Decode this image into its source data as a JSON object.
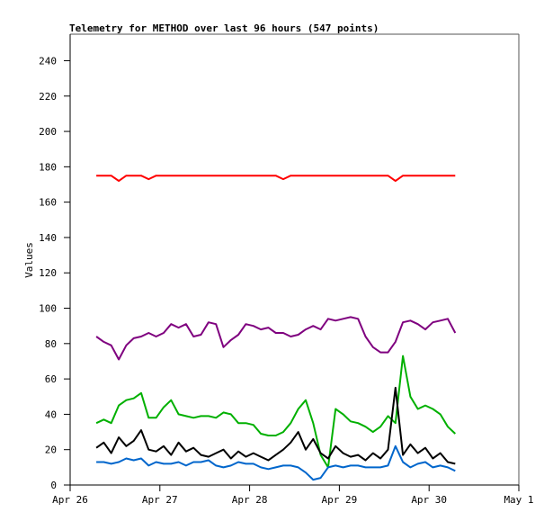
{
  "chart_data": {
    "type": "line",
    "title": "Telemetry for METHOD over last 96 hours (547 points)",
    "xlabel": "",
    "ylabel": "Values",
    "ylim": [
      0,
      255
    ],
    "yticks": [
      0,
      20,
      40,
      60,
      80,
      100,
      120,
      140,
      160,
      180,
      200,
      220,
      240
    ],
    "xlim_hours": [
      0,
      120
    ],
    "xticks": [
      {
        "hour": 0,
        "label": "Apr 26"
      },
      {
        "hour": 24,
        "label": "Apr 27"
      },
      {
        "hour": 48,
        "label": "Apr 28"
      },
      {
        "hour": 72,
        "label": "Apr 29"
      },
      {
        "hour": 96,
        "label": "Apr 30"
      },
      {
        "hour": 120,
        "label": "May 1"
      }
    ],
    "x_start_hour": 7,
    "x_step_hours": 2,
    "grid": false,
    "series": [
      {
        "name": "red",
        "color": "#ff0000",
        "values": [
          175,
          175,
          175,
          172,
          175,
          175,
          175,
          173,
          175,
          175,
          175,
          175,
          175,
          175,
          175,
          175,
          175,
          175,
          175,
          175,
          175,
          175,
          175,
          175,
          175,
          173,
          175,
          175,
          175,
          175,
          175,
          175,
          175,
          175,
          175,
          175,
          175,
          175,
          175,
          175,
          172,
          175,
          175,
          175,
          175,
          175,
          175,
          175,
          175
        ]
      },
      {
        "name": "purple",
        "color": "#7f007f",
        "values": [
          84,
          81,
          79,
          71,
          79,
          83,
          84,
          86,
          84,
          86,
          91,
          89,
          91,
          84,
          85,
          92,
          91,
          78,
          82,
          85,
          91,
          90,
          88,
          89,
          86,
          86,
          84,
          85,
          88,
          90,
          88,
          94,
          93,
          94,
          95,
          94,
          84,
          78,
          75,
          75,
          81,
          92,
          93,
          91,
          88,
          92,
          93,
          94,
          86
        ]
      },
      {
        "name": "green",
        "color": "#00b000",
        "values": [
          35,
          37,
          35,
          45,
          48,
          49,
          52,
          38,
          38,
          44,
          48,
          40,
          39,
          38,
          39,
          39,
          38,
          41,
          40,
          35,
          35,
          34,
          29,
          28,
          28,
          30,
          35,
          43,
          48,
          35,
          17,
          10,
          43,
          40,
          36,
          35,
          33,
          30,
          33,
          39,
          35,
          73,
          50,
          43,
          45,
          43,
          40,
          33,
          29
        ]
      },
      {
        "name": "black",
        "color": "#000000",
        "values": [
          21,
          24,
          18,
          27,
          22,
          25,
          31,
          20,
          19,
          22,
          17,
          24,
          19,
          21,
          17,
          16,
          18,
          20,
          15,
          19,
          16,
          18,
          16,
          14,
          17,
          20,
          24,
          30,
          20,
          26,
          18,
          15,
          22,
          18,
          16,
          17,
          14,
          18,
          15,
          20,
          55,
          17,
          23,
          18,
          21,
          15,
          18,
          13,
          12
        ]
      },
      {
        "name": "blue",
        "color": "#0066cc",
        "values": [
          13,
          13,
          12,
          13,
          15,
          14,
          15,
          11,
          13,
          12,
          12,
          13,
          11,
          13,
          13,
          14,
          11,
          10,
          11,
          13,
          12,
          12,
          10,
          9,
          10,
          11,
          11,
          10,
          7,
          3,
          4,
          10,
          11,
          10,
          11,
          11,
          10,
          10,
          10,
          11,
          22,
          13,
          10,
          12,
          13,
          10,
          11,
          10,
          8
        ]
      }
    ]
  }
}
